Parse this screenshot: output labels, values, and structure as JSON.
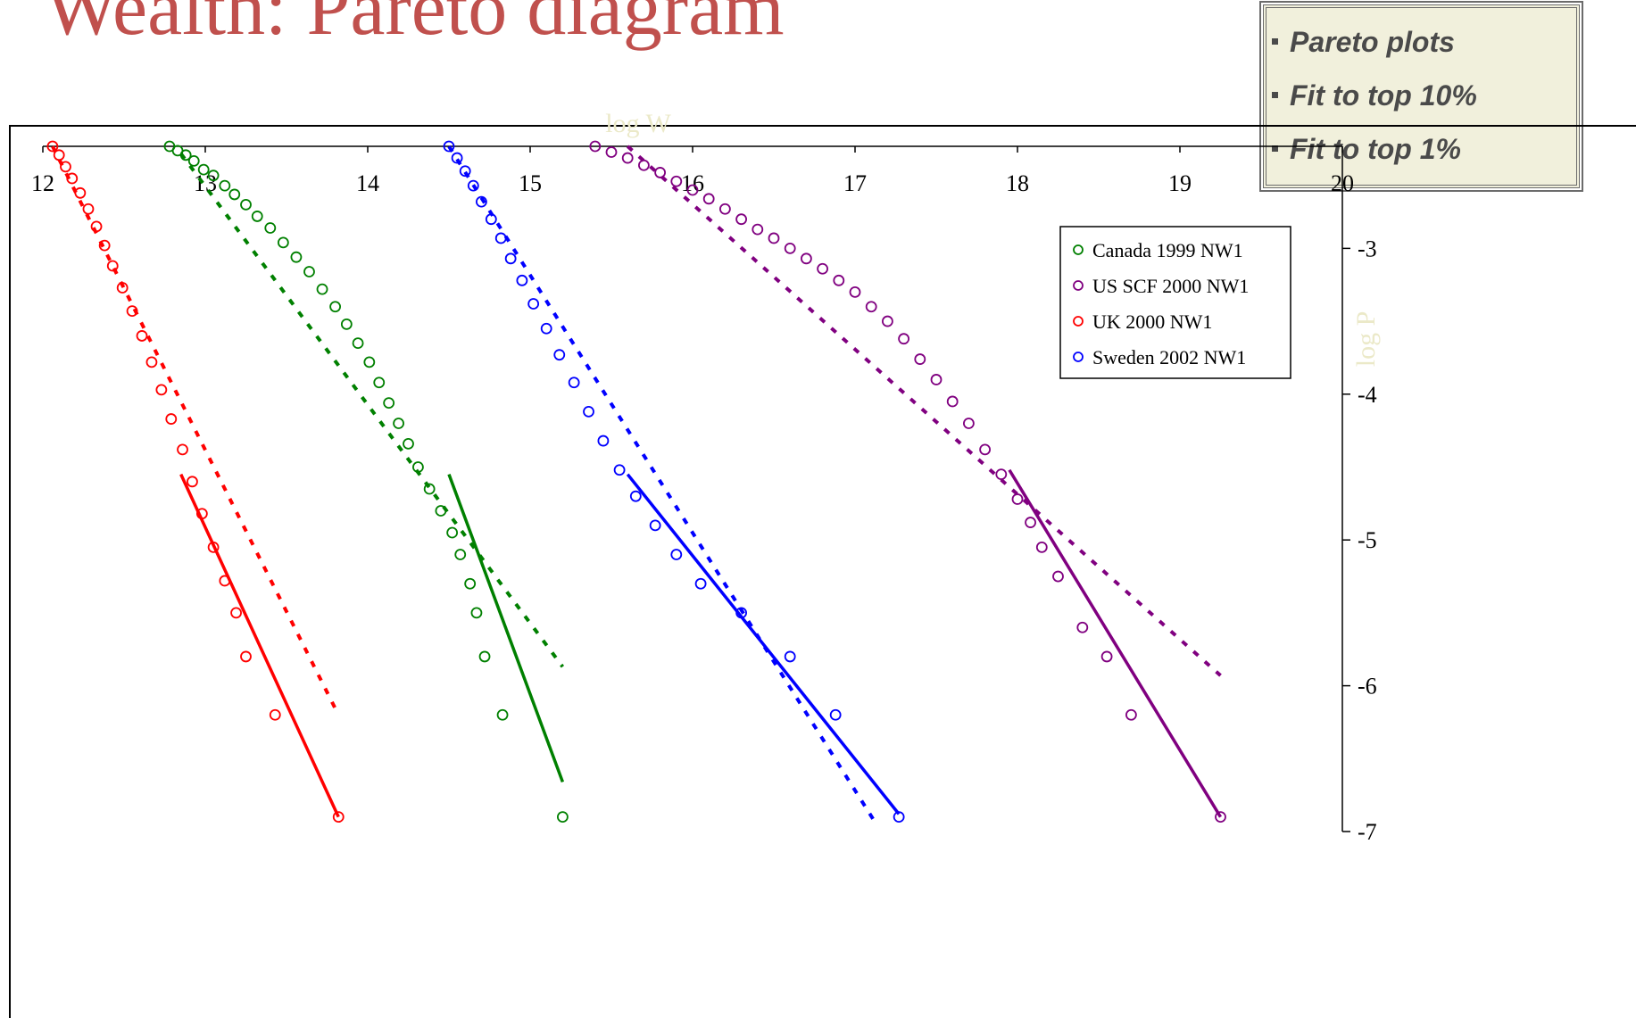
{
  "slide_title": "Wealth: Pareto diagram",
  "colors": {
    "title": "#c0504d",
    "axis_title": "#ebe9c8",
    "canada": "#008000",
    "us": "#800080",
    "uk": "#ff0000",
    "sweden": "#0000ff"
  },
  "notes": {
    "items": [
      "Pareto plots",
      "Fit to top 10%",
      "Fit to top 1%"
    ]
  },
  "chart_data": {
    "type": "scatter",
    "xlabel": "log W",
    "ylabel": "log P",
    "x_axis": {
      "position": "top",
      "range": [
        12,
        20
      ],
      "ticks": [
        "12",
        "13",
        "14",
        "15",
        "16",
        "17",
        "18",
        "19",
        "20"
      ]
    },
    "y_axis": {
      "position": "right",
      "range": [
        -7,
        -2.3
      ],
      "ticks": [
        "-3",
        "-4",
        "-5",
        "-6",
        "-7"
      ]
    },
    "legend": {
      "placement": "top-right",
      "entries": [
        "Canada 1999 NW1",
        "US SCF 2000 NW1",
        "UK 2000 NW1",
        "Sweden 2002 NW1"
      ]
    },
    "series": [
      {
        "name": "Canada 1999 NW1",
        "color": "#008000",
        "points": [
          [
            12.78,
            -2.3
          ],
          [
            12.83,
            -2.33
          ],
          [
            12.88,
            -2.36
          ],
          [
            12.93,
            -2.4
          ],
          [
            12.99,
            -2.46
          ],
          [
            13.05,
            -2.5
          ],
          [
            13.12,
            -2.57
          ],
          [
            13.18,
            -2.63
          ],
          [
            13.25,
            -2.7
          ],
          [
            13.32,
            -2.78
          ],
          [
            13.4,
            -2.86
          ],
          [
            13.48,
            -2.96
          ],
          [
            13.56,
            -3.06
          ],
          [
            13.64,
            -3.16
          ],
          [
            13.72,
            -3.28
          ],
          [
            13.8,
            -3.4
          ],
          [
            13.87,
            -3.52
          ],
          [
            13.94,
            -3.65
          ],
          [
            14.01,
            -3.78
          ],
          [
            14.07,
            -3.92
          ],
          [
            14.13,
            -4.06
          ],
          [
            14.19,
            -4.2
          ],
          [
            14.25,
            -4.34
          ],
          [
            14.31,
            -4.5
          ],
          [
            14.38,
            -4.65
          ],
          [
            14.45,
            -4.8
          ],
          [
            14.52,
            -4.95
          ],
          [
            14.57,
            -5.1
          ],
          [
            14.63,
            -5.3
          ],
          [
            14.67,
            -5.5
          ],
          [
            14.72,
            -5.8
          ],
          [
            14.83,
            -6.2
          ],
          [
            15.2,
            -6.9
          ]
        ],
        "fit_top_10pct": [
          [
            12.85,
            -2.35
          ],
          [
            15.2,
            -5.87
          ]
        ],
        "fit_top_1pct": [
          [
            14.5,
            -4.55
          ],
          [
            15.2,
            -6.66
          ]
        ]
      },
      {
        "name": "US SCF 2000 NW1",
        "color": "#800080",
        "points": [
          [
            15.4,
            -2.3
          ],
          [
            15.5,
            -2.34
          ],
          [
            15.6,
            -2.38
          ],
          [
            15.7,
            -2.43
          ],
          [
            15.8,
            -2.48
          ],
          [
            15.9,
            -2.54
          ],
          [
            16.0,
            -2.6
          ],
          [
            16.1,
            -2.66
          ],
          [
            16.2,
            -2.73
          ],
          [
            16.3,
            -2.8
          ],
          [
            16.4,
            -2.87
          ],
          [
            16.5,
            -2.93
          ],
          [
            16.6,
            -3.0
          ],
          [
            16.7,
            -3.07
          ],
          [
            16.8,
            -3.14
          ],
          [
            16.9,
            -3.22
          ],
          [
            17.0,
            -3.3
          ],
          [
            17.1,
            -3.4
          ],
          [
            17.2,
            -3.5
          ],
          [
            17.3,
            -3.62
          ],
          [
            17.4,
            -3.76
          ],
          [
            17.5,
            -3.9
          ],
          [
            17.6,
            -4.05
          ],
          [
            17.7,
            -4.2
          ],
          [
            17.8,
            -4.38
          ],
          [
            17.9,
            -4.55
          ],
          [
            18.0,
            -4.72
          ],
          [
            18.08,
            -4.88
          ],
          [
            18.15,
            -5.05
          ],
          [
            18.25,
            -5.25
          ],
          [
            18.4,
            -5.6
          ],
          [
            18.55,
            -5.8
          ],
          [
            18.7,
            -6.2
          ],
          [
            19.25,
            -6.9
          ]
        ],
        "fit_top_10pct": [
          [
            15.6,
            -2.3
          ],
          [
            19.25,
            -5.93
          ]
        ],
        "fit_top_1pct": [
          [
            17.95,
            -4.52
          ],
          [
            19.25,
            -6.9
          ]
        ]
      },
      {
        "name": "UK 2000 NW1",
        "color": "#ff0000",
        "points": [
          [
            12.06,
            -2.3
          ],
          [
            12.1,
            -2.36
          ],
          [
            12.14,
            -2.44
          ],
          [
            12.18,
            -2.52
          ],
          [
            12.23,
            -2.62
          ],
          [
            12.28,
            -2.73
          ],
          [
            12.33,
            -2.85
          ],
          [
            12.38,
            -2.98
          ],
          [
            12.43,
            -3.12
          ],
          [
            12.49,
            -3.27
          ],
          [
            12.55,
            -3.43
          ],
          [
            12.61,
            -3.6
          ],
          [
            12.67,
            -3.78
          ],
          [
            12.73,
            -3.97
          ],
          [
            12.79,
            -4.17
          ],
          [
            12.86,
            -4.38
          ],
          [
            12.92,
            -4.6
          ],
          [
            12.98,
            -4.82
          ],
          [
            13.05,
            -5.05
          ],
          [
            13.12,
            -5.28
          ],
          [
            13.19,
            -5.5
          ],
          [
            13.25,
            -5.8
          ],
          [
            13.43,
            -6.2
          ],
          [
            13.82,
            -6.9
          ]
        ],
        "fit_top_10pct": [
          [
            12.06,
            -2.3
          ],
          [
            13.82,
            -6.2
          ]
        ],
        "fit_top_1pct": [
          [
            12.85,
            -4.55
          ],
          [
            13.82,
            -6.9
          ]
        ]
      },
      {
        "name": "Sweden 2002 NW1",
        "color": "#0000ff",
        "points": [
          [
            14.5,
            -2.3
          ],
          [
            14.55,
            -2.38
          ],
          [
            14.6,
            -2.47
          ],
          [
            14.65,
            -2.57
          ],
          [
            14.7,
            -2.68
          ],
          [
            14.76,
            -2.8
          ],
          [
            14.82,
            -2.93
          ],
          [
            14.88,
            -3.07
          ],
          [
            14.95,
            -3.22
          ],
          [
            15.02,
            -3.38
          ],
          [
            15.1,
            -3.55
          ],
          [
            15.18,
            -3.73
          ],
          [
            15.27,
            -3.92
          ],
          [
            15.36,
            -4.12
          ],
          [
            15.45,
            -4.32
          ],
          [
            15.55,
            -4.52
          ],
          [
            15.65,
            -4.7
          ],
          [
            15.77,
            -4.9
          ],
          [
            15.9,
            -5.1
          ],
          [
            16.05,
            -5.3
          ],
          [
            16.3,
            -5.5
          ],
          [
            16.6,
            -5.8
          ],
          [
            16.88,
            -6.2
          ],
          [
            17.27,
            -6.9
          ]
        ],
        "fit_top_10pct": [
          [
            14.5,
            -2.3
          ],
          [
            17.12,
            -6.93
          ]
        ],
        "fit_top_1pct": [
          [
            15.6,
            -4.55
          ],
          [
            17.27,
            -6.88
          ]
        ]
      }
    ]
  }
}
